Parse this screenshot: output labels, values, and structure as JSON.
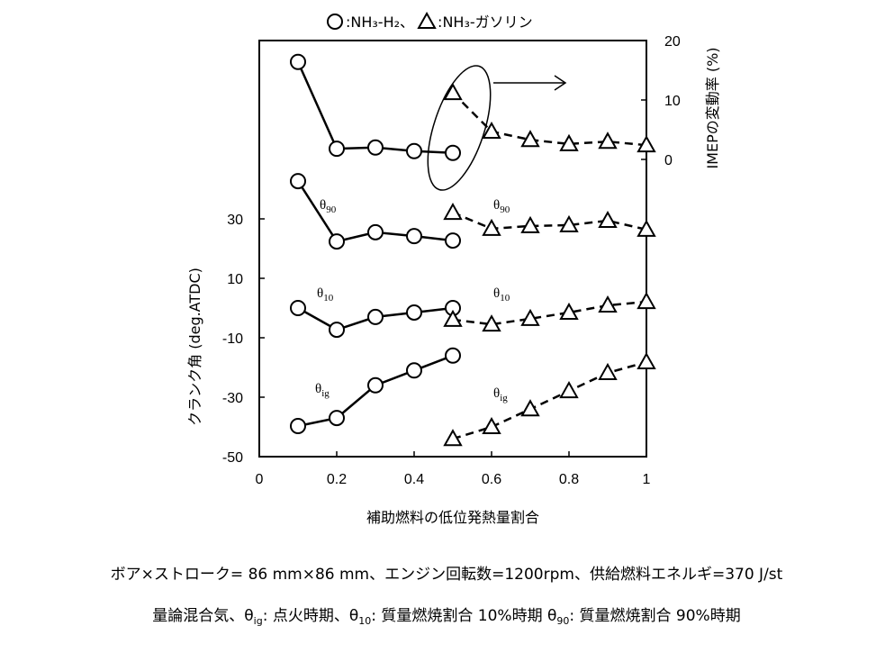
{
  "chart_data": {
    "type": "scatter",
    "legend": {
      "marker_separator": ":",
      "entry_separator": "、"
    },
    "x_label": "補助燃料の低位発熱量割合",
    "y_label": "クランク角 (deg.ATDC)",
    "y2_label": "IMEPの変動率 (%)",
    "xlim": [
      0,
      1
    ],
    "xticks": [
      0,
      0.2,
      0.4,
      0.6,
      0.8,
      1
    ],
    "ylim": [
      -50,
      90
    ],
    "yticks": [
      -50,
      -30,
      -10,
      10,
      30
    ],
    "y2lim": [
      -50,
      20
    ],
    "y2ticks": [
      0,
      10,
      20
    ],
    "series": [
      {
        "name": "NH₃-H₂",
        "marker": "circle",
        "dash": false,
        "axis": "y2",
        "color": "#000000",
        "x": [
          0.1,
          0.2,
          0.3,
          0.4,
          0.5
        ],
        "values": [
          16.4,
          1.8,
          2.0,
          1.4,
          1.1
        ]
      },
      {
        "name": "NH₃-ガソリン",
        "marker": "triangle",
        "dash": true,
        "axis": "y2",
        "color": "#000000",
        "x": [
          0.5,
          0.6,
          0.7,
          0.8,
          0.9,
          1.0
        ],
        "values": [
          11.2,
          4.7,
          3.3,
          2.6,
          3.0,
          2.4
        ]
      },
      {
        "label": {
          "text": "θ",
          "sub": "90"
        },
        "marker": "circle",
        "dash": false,
        "axis": "y",
        "color": "#000000",
        "x": [
          0.1,
          0.2,
          0.3,
          0.4,
          0.5
        ],
        "values": [
          42.7,
          22.4,
          25.5,
          24.2,
          22.7
        ]
      },
      {
        "label": {
          "text": "θ",
          "sub": "90"
        },
        "marker": "triangle",
        "dash": true,
        "axis": "y",
        "color": "#000000",
        "x": [
          0.5,
          0.6,
          0.7,
          0.8,
          0.9,
          1.0
        ],
        "values": [
          32.1,
          26.7,
          27.6,
          27.9,
          29.4,
          26.4
        ]
      },
      {
        "label": {
          "text": "θ",
          "sub": "10"
        },
        "marker": "circle",
        "dash": false,
        "axis": "y",
        "color": "#000000",
        "x": [
          0.1,
          0.2,
          0.3,
          0.4,
          0.5
        ],
        "values": [
          0,
          -7.3,
          -3.0,
          -1.5,
          0
        ]
      },
      {
        "label": {
          "text": "θ",
          "sub": "10"
        },
        "marker": "triangle",
        "dash": true,
        "axis": "y",
        "color": "#000000",
        "x": [
          0.5,
          0.6,
          0.7,
          0.8,
          0.9,
          1.0
        ],
        "values": [
          -3.9,
          -5.5,
          -3.6,
          -1.5,
          0.9,
          2.1
        ]
      },
      {
        "label": {
          "text": "θ",
          "sub": "ig"
        },
        "marker": "circle",
        "dash": false,
        "axis": "y",
        "color": "#000000",
        "x": [
          0.1,
          0.2,
          0.3,
          0.4,
          0.5
        ],
        "values": [
          -39.7,
          -37,
          -26,
          -21,
          -16
        ]
      },
      {
        "label": {
          "text": "θ",
          "sub": "ig"
        },
        "marker": "triangle",
        "dash": true,
        "axis": "y",
        "color": "#000000",
        "x": [
          0.5,
          0.6,
          0.7,
          0.8,
          0.9,
          1.0
        ],
        "values": [
          -44,
          -40,
          -34,
          -27.9,
          -21.8,
          -18.2
        ]
      }
    ]
  },
  "notes": {
    "line1": "ボア×ストローク= 86 mm×86 mm、エンジン回転数=1200rpm、供給燃料エネルギ=370 J/st",
    "line2": [
      {
        "text": "量論混合気、θ"
      },
      {
        "sub": "ig"
      },
      {
        "text": ":  点火時期、θ"
      },
      {
        "sub": "10"
      },
      {
        "text": ":  質量燃焼割合 10%時期  θ"
      },
      {
        "sub": "90"
      },
      {
        "text": ":  質量燃焼割合 90%時期"
      }
    ]
  }
}
